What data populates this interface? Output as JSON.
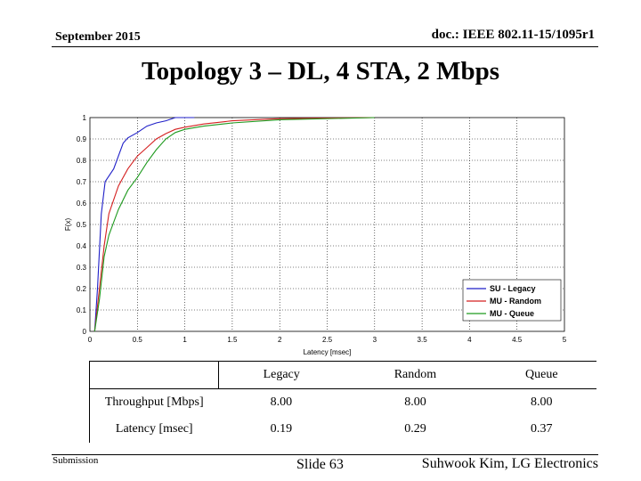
{
  "header": {
    "date": "September 2015",
    "doc": "doc.: IEEE 802.11-15/1095r1"
  },
  "title": "Topology 3 – DL, 4 STA, 2 Mbps",
  "chart_data": {
    "type": "line",
    "xlabel": "Latency [msec]",
    "ylabel": "F(x)",
    "xlim": [
      0,
      5
    ],
    "ylim": [
      0,
      1
    ],
    "xticks": [
      "0",
      "0.5",
      "1",
      "1.5",
      "2",
      "2.5",
      "3",
      "3.5",
      "4",
      "4.5",
      "5"
    ],
    "yticks": [
      "0",
      "0.1",
      "0.2",
      "0.3",
      "0.4",
      "0.5",
      "0.6",
      "0.7",
      "0.8",
      "0.9",
      "1"
    ],
    "grid": true,
    "legend_position": "bottom-right",
    "series": [
      {
        "name": "SU - Legacy",
        "color": "#1f1fc8",
        "points": [
          [
            0.05,
            0.0
          ],
          [
            0.08,
            0.2
          ],
          [
            0.12,
            0.55
          ],
          [
            0.16,
            0.7
          ],
          [
            0.25,
            0.76
          ],
          [
            0.3,
            0.82
          ],
          [
            0.35,
            0.88
          ],
          [
            0.4,
            0.905
          ],
          [
            0.5,
            0.93
          ],
          [
            0.6,
            0.96
          ],
          [
            0.7,
            0.975
          ],
          [
            0.8,
            0.985
          ],
          [
            0.9,
            1.0
          ],
          [
            1.0,
            1.0
          ],
          [
            1.1,
            1.0
          ]
        ]
      },
      {
        "name": "MU - Random",
        "color": "#d42020",
        "points": [
          [
            0.05,
            0.0
          ],
          [
            0.1,
            0.2
          ],
          [
            0.15,
            0.4
          ],
          [
            0.2,
            0.55
          ],
          [
            0.3,
            0.68
          ],
          [
            0.4,
            0.76
          ],
          [
            0.5,
            0.82
          ],
          [
            0.6,
            0.86
          ],
          [
            0.7,
            0.9
          ],
          [
            0.8,
            0.925
          ],
          [
            0.9,
            0.945
          ],
          [
            1.0,
            0.955
          ],
          [
            1.2,
            0.97
          ],
          [
            1.5,
            0.985
          ],
          [
            2.0,
            0.995
          ],
          [
            3.0,
            1.0
          ]
        ]
      },
      {
        "name": "MU - Queue",
        "color": "#1e9a1e",
        "points": [
          [
            0.05,
            0.0
          ],
          [
            0.1,
            0.15
          ],
          [
            0.15,
            0.35
          ],
          [
            0.2,
            0.45
          ],
          [
            0.3,
            0.57
          ],
          [
            0.4,
            0.66
          ],
          [
            0.5,
            0.72
          ],
          [
            0.6,
            0.79
          ],
          [
            0.7,
            0.85
          ],
          [
            0.8,
            0.9
          ],
          [
            0.9,
            0.93
          ],
          [
            1.0,
            0.945
          ],
          [
            1.2,
            0.96
          ],
          [
            1.5,
            0.975
          ],
          [
            2.0,
            0.99
          ],
          [
            3.0,
            1.0
          ]
        ]
      }
    ]
  },
  "table": {
    "header": [
      "",
      "Legacy",
      "Random",
      "Queue"
    ],
    "rows": [
      {
        "label": "Throughput [Mbps]",
        "values": [
          "8.00",
          "8.00",
          "8.00"
        ]
      },
      {
        "label": "Latency [msec]",
        "values": [
          "0.19",
          "0.29",
          "0.37"
        ]
      }
    ]
  },
  "footer": {
    "left": "Submission",
    "center": "Slide 63",
    "right": "Suhwook Kim, LG Electronics"
  }
}
